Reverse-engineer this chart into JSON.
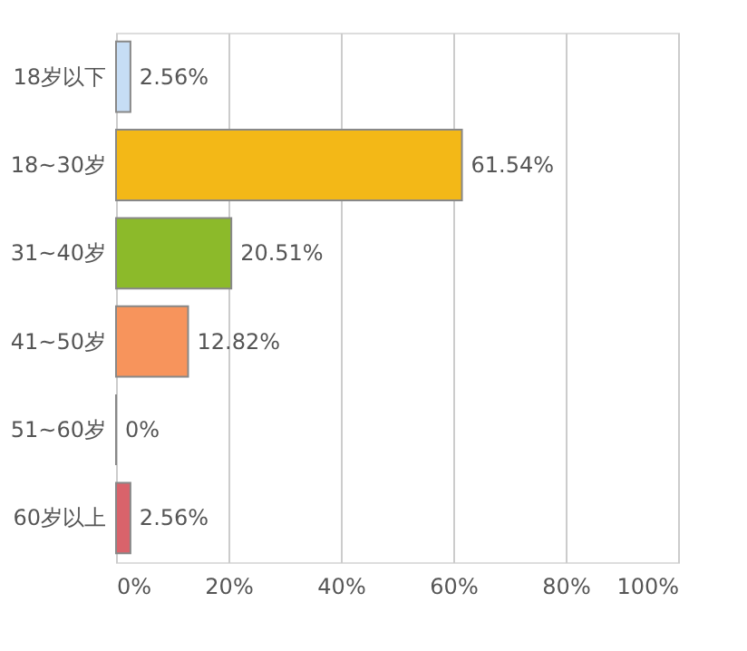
{
  "chart_data": {
    "type": "bar",
    "orientation": "horizontal",
    "categories": [
      "18岁以下",
      "18~30岁",
      "31~40岁",
      "41~50岁",
      "51~60岁",
      "60岁以上"
    ],
    "values": [
      2.56,
      61.54,
      20.51,
      12.82,
      0,
      2.56
    ],
    "colors": [
      "#c6ddf5",
      "#f3b817",
      "#8cba2a",
      "#f7945c",
      "#888888",
      "#d9636b"
    ],
    "value_labels": [
      "2.56%",
      "61.54%",
      "20.51%",
      "12.82%",
      "0%",
      "2.56%"
    ],
    "xlim": [
      0,
      100
    ],
    "xticks": [
      {
        "value": 0,
        "label": "0%"
      },
      {
        "value": 20,
        "label": "20%"
      },
      {
        "value": 40,
        "label": "40%"
      },
      {
        "value": 60,
        "label": "60%"
      },
      {
        "value": 80,
        "label": "80%"
      },
      {
        "value": 100,
        "label": "100%"
      }
    ],
    "grid": "x"
  }
}
